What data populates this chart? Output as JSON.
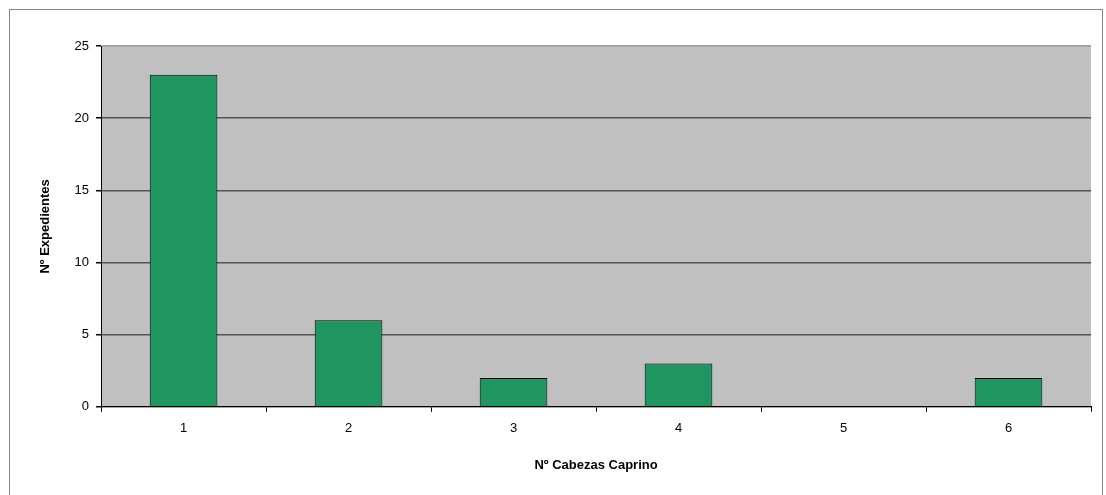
{
  "chart_data": {
    "type": "bar",
    "xlabel": "Nº Cabezas Caprino",
    "ylabel": "Nº Expedientes",
    "categories": [
      "1",
      "2",
      "3",
      "4",
      "5",
      "6"
    ],
    "values": [
      23,
      6,
      2,
      3,
      0,
      2
    ],
    "color": "#1f9660",
    "ylim": [
      0,
      25
    ],
    "yticks": [
      0,
      5,
      10,
      15,
      20,
      25
    ],
    "grid": "y"
  }
}
